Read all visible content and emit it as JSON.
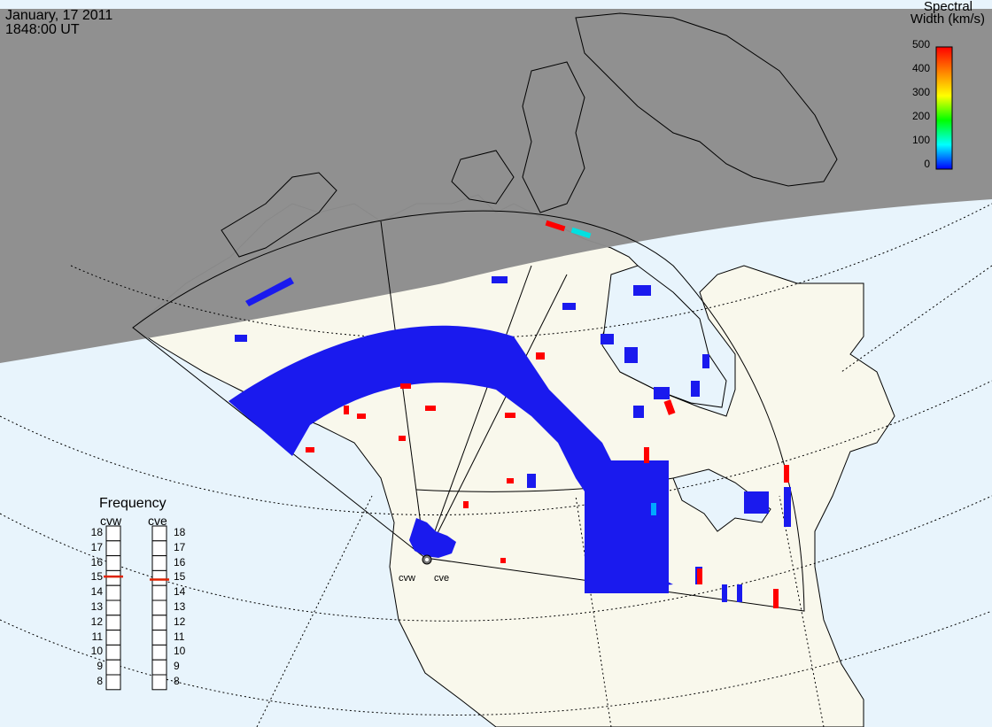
{
  "header": {
    "date": "January, 17 2011",
    "time": "1848:00 UT"
  },
  "colorbar": {
    "title_line1": "Spectral",
    "title_line2": "Width (km/s)",
    "ticks": [
      "500",
      "400",
      "300",
      "200",
      "100",
      "0"
    ],
    "colors": [
      "#ff0000",
      "#ff8000",
      "#ffff00",
      "#00ff00",
      "#00ffff",
      "#0000ff"
    ]
  },
  "frequency_panel": {
    "title": "Frequency",
    "left_label": "cvw",
    "right_label": "cve",
    "ticks": [
      "18",
      "17",
      "16",
      "15",
      "14",
      "13",
      "12",
      "11",
      "10",
      "9",
      "8"
    ],
    "cvw_value": 15.1,
    "cve_value": 14.9,
    "marker_color": "#dd2200"
  },
  "sites": {
    "west": "cvw",
    "east": "cve"
  },
  "map": {
    "night_color": "#8c8c8c",
    "ocean_color": "#e8f4fc",
    "land_color": "#f9f8ec",
    "scatter_color": "#1a1aee"
  }
}
